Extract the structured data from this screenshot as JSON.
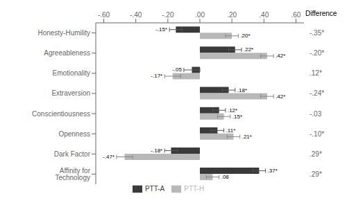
{
  "chart_data": {
    "type": "bar",
    "orientation": "horizontal",
    "categories": [
      "Honesty-Humility",
      "Agreeableness",
      "Emotionality",
      "Extraversion",
      "Conscientiousness",
      "Openness",
      "Dark Factor",
      "Affinity for Technology"
    ],
    "series": [
      {
        "name": "PTT-A",
        "color": "#3a3a3a",
        "values": [
          -0.15,
          0.22,
          -0.05,
          0.18,
          0.12,
          0.11,
          -0.18,
          0.37
        ],
        "errors": [
          0.04,
          0.04,
          0.05,
          0.04,
          0.04,
          0.04,
          0.04,
          0.04
        ],
        "value_labels": [
          "-.15*",
          ".22*",
          "-.05",
          ".18*",
          ".12*",
          ".11*",
          "-.18*",
          ".37*"
        ]
      },
      {
        "name": "PTT-H",
        "color": "#b8b8b8",
        "values": [
          0.2,
          0.42,
          -0.17,
          0.42,
          0.15,
          0.21,
          -0.47,
          0.08
        ],
        "errors": [
          0.04,
          0.04,
          0.05,
          0.04,
          0.04,
          0.04,
          0.05,
          0.04
        ],
        "value_labels": [
          ".20*",
          ".42*",
          "-.17*",
          ".42*",
          ".15*",
          ".21*",
          "-.47*",
          ".08"
        ]
      }
    ],
    "data_labels": true,
    "xlim": [
      -0.65,
      0.65
    ],
    "xticks": [
      {
        "value": -0.6,
        "label": "-.60"
      },
      {
        "value": -0.4,
        "label": "-.40"
      },
      {
        "value": -0.2,
        "label": "-.20"
      },
      {
        "value": 0.0,
        "label": ".00"
      },
      {
        "value": 0.2,
        "label": ".20"
      },
      {
        "value": 0.4,
        "label": ".40"
      },
      {
        "value": 0.6,
        "label": ".60"
      }
    ],
    "annotation_title": "Difference",
    "annotations": [
      "-.35*",
      "-.20*",
      ".12*",
      "-.24*",
      "-.03",
      "-.10*",
      ".29*",
      ".29*"
    ],
    "legend": "bottom"
  }
}
